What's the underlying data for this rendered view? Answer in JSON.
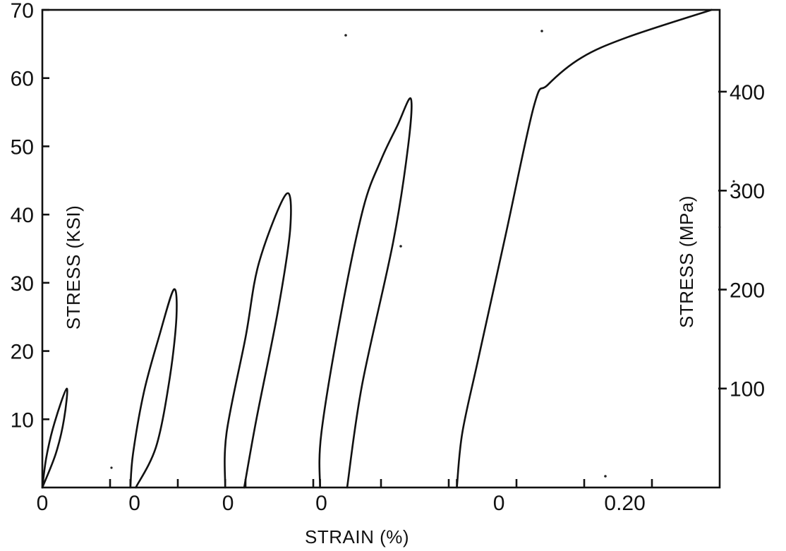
{
  "chart_data": {
    "type": "line",
    "title": "",
    "xlabel": "STRAIN (%)",
    "ylabel_left": "STRESS (KSI)",
    "ylabel_right": "STRESS (MPa)",
    "ylim_left": [
      0,
      70
    ],
    "yticks_left": [
      "10",
      "20",
      "30",
      "40",
      "50",
      "60",
      "70"
    ],
    "yticks_right": [
      "100",
      "200",
      "300",
      "400"
    ],
    "x_tick_labels": [
      "0",
      "0",
      "0",
      "0",
      "0",
      "0.20"
    ],
    "grid": false,
    "legend": "none",
    "series": [
      {
        "points": [
          [
            0.0,
            0
          ],
          [
            0.003,
            4.5
          ],
          [
            0.009,
            9.5
          ],
          [
            0.018,
            14.5
          ],
          [
            0.016,
            10
          ],
          [
            0.01,
            5
          ],
          [
            0.0,
            0
          ]
        ]
      },
      {
        "points": [
          [
            0.065,
            0
          ],
          [
            0.067,
            5
          ],
          [
            0.075,
            14
          ],
          [
            0.086,
            22
          ],
          [
            0.097,
            29
          ],
          [
            0.099,
            25
          ],
          [
            0.094,
            16
          ],
          [
            0.084,
            6
          ],
          [
            0.069,
            0
          ]
        ]
      },
      {
        "points": [
          [
            0.135,
            0
          ],
          [
            0.136,
            8
          ],
          [
            0.15,
            22
          ],
          [
            0.16,
            33
          ],
          [
            0.18,
            43
          ],
          [
            0.183,
            38
          ],
          [
            0.174,
            26
          ],
          [
            0.158,
            10
          ],
          [
            0.149,
            0
          ]
        ]
      },
      {
        "points": [
          [
            0.205,
            0
          ],
          [
            0.206,
            8
          ],
          [
            0.221,
            26
          ],
          [
            0.237,
            41
          ],
          [
            0.25,
            48
          ],
          [
            0.262,
            53
          ],
          [
            0.272,
            57
          ],
          [
            0.27,
            50
          ],
          [
            0.259,
            36
          ],
          [
            0.236,
            15
          ],
          [
            0.225,
            0
          ]
        ]
      },
      {
        "points": [
          [
            0.306,
            0
          ],
          [
            0.31,
            8
          ],
          [
            0.322,
            19
          ],
          [
            0.342,
            37
          ],
          [
            0.363,
            56
          ],
          [
            0.373,
            59
          ],
          [
            0.398,
            63
          ],
          [
            0.432,
            66
          ],
          [
            0.494,
            70
          ]
        ]
      }
    ]
  }
}
